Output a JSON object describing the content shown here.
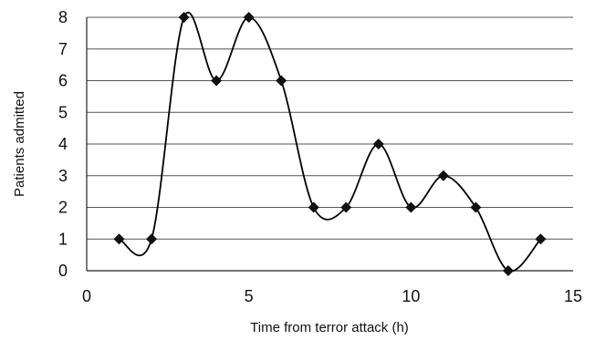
{
  "chart_data": {
    "type": "line",
    "title": "",
    "xlabel": "Time from terror attack (h)",
    "ylabel": "Patients admitted",
    "xlim": [
      0,
      15
    ],
    "ylim": [
      0,
      8
    ],
    "x_ticks": [
      0,
      5,
      10,
      15
    ],
    "y_ticks": [
      0,
      1,
      2,
      3,
      4,
      5,
      6,
      7,
      8
    ],
    "grid": "horizontal",
    "legend": "none",
    "line_style": "smoothed",
    "marker": "diamond",
    "series": [
      {
        "x": [
          1,
          2,
          3,
          4,
          5,
          6,
          7,
          8,
          9,
          10,
          11,
          12,
          13,
          14
        ],
        "values": [
          1,
          1,
          8,
          6,
          8,
          6,
          2,
          2,
          4,
          2,
          3,
          2,
          0,
          1
        ]
      }
    ]
  },
  "colors": {
    "line": "#000000",
    "marker": "#111111",
    "grid": "#555555",
    "background": "#ffffff"
  }
}
